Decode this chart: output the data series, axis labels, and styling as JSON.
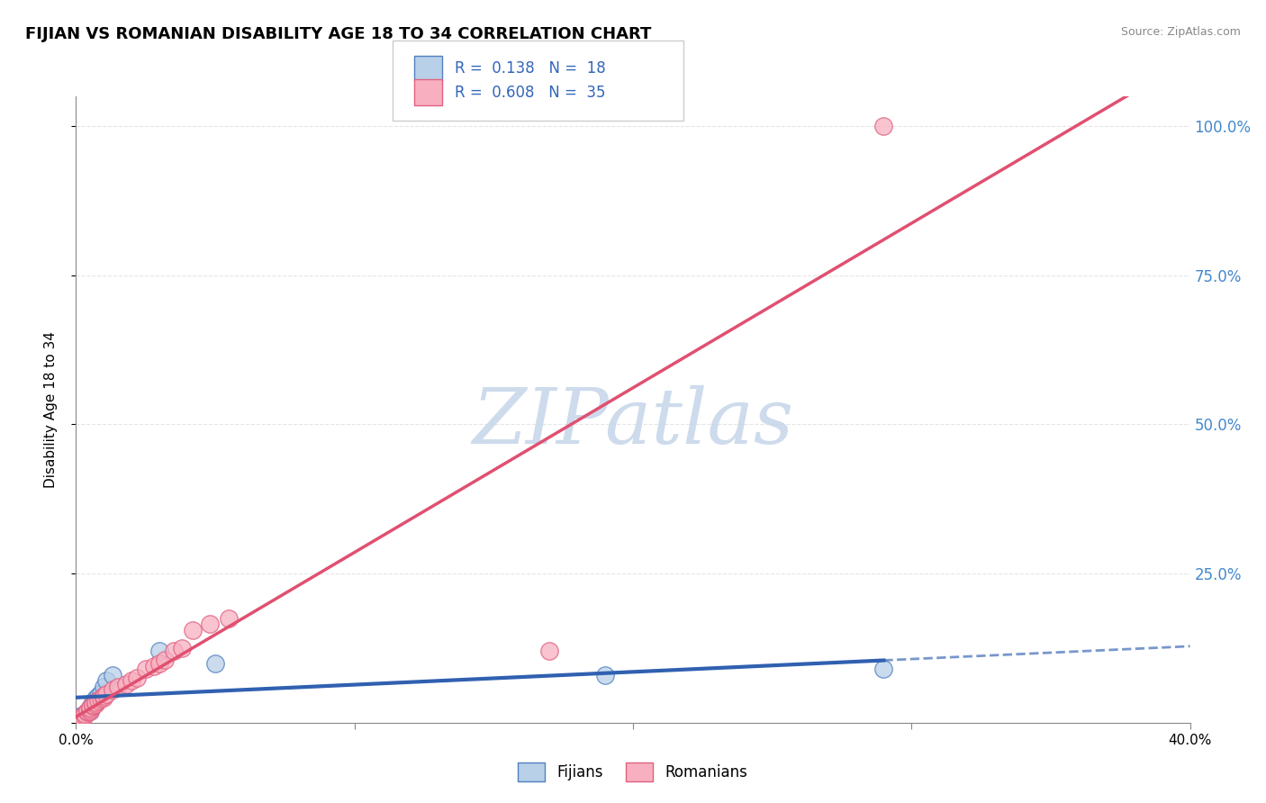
{
  "title": "FIJIAN VS ROMANIAN DISABILITY AGE 18 TO 34 CORRELATION CHART",
  "source": "Source: ZipAtlas.com",
  "ylabel": "Disability Age 18 to 34",
  "xlim": [
    0.0,
    0.4
  ],
  "ylim": [
    0.0,
    1.05
  ],
  "fijian_R": "0.138",
  "fijian_N": "18",
  "romanian_R": "0.608",
  "romanian_N": "35",
  "fijian_fill": "#b8d0e8",
  "fijian_edge": "#5080c0",
  "romanian_fill": "#f8b0c0",
  "romanian_edge": "#e06080",
  "fijian_line": "#3060b0",
  "romanian_line": "#e05070",
  "watermark_color": "#c8d8ea",
  "fijian_x": [
    0.001,
    0.002,
    0.003,
    0.004,
    0.005,
    0.005,
    0.006,
    0.006,
    0.007,
    0.008,
    0.009,
    0.01,
    0.011,
    0.013,
    0.03,
    0.05,
    0.19,
    0.29
  ],
  "fijian_y": [
    0.01,
    0.01,
    0.015,
    0.02,
    0.02,
    0.025,
    0.03,
    0.035,
    0.04,
    0.045,
    0.05,
    0.06,
    0.07,
    0.08,
    0.12,
    0.1,
    0.08,
    0.09
  ],
  "romanian_x": [
    0.001,
    0.002,
    0.002,
    0.003,
    0.003,
    0.004,
    0.004,
    0.005,
    0.005,
    0.005,
    0.006,
    0.006,
    0.007,
    0.007,
    0.008,
    0.009,
    0.01,
    0.01,
    0.011,
    0.013,
    0.015,
    0.018,
    0.02,
    0.022,
    0.025,
    0.028,
    0.03,
    0.032,
    0.035,
    0.038,
    0.042,
    0.048,
    0.055,
    0.17,
    0.29
  ],
  "romanian_y": [
    0.005,
    0.008,
    0.01,
    0.012,
    0.015,
    0.018,
    0.02,
    0.02,
    0.022,
    0.025,
    0.028,
    0.03,
    0.032,
    0.035,
    0.038,
    0.04,
    0.042,
    0.045,
    0.048,
    0.055,
    0.06,
    0.065,
    0.07,
    0.075,
    0.09,
    0.095,
    0.1,
    0.105,
    0.12,
    0.125,
    0.155,
    0.165,
    0.175,
    0.12,
    1.0
  ]
}
